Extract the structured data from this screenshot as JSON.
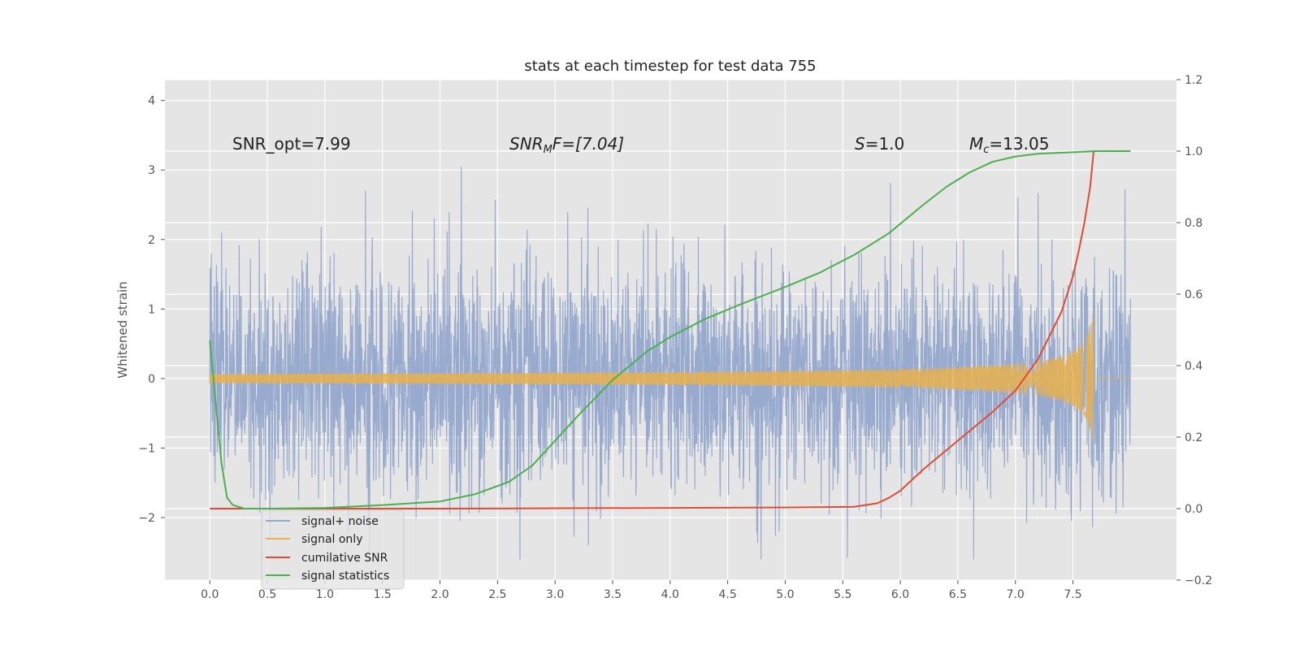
{
  "chart_data": {
    "type": "line",
    "title": "stats at each timestep for test data 755",
    "ylabel": "Whitened strain",
    "xlabel": "",
    "xlim": [
      -0.39,
      8.4
    ],
    "ylim": [
      -2.9,
      4.3
    ],
    "ylim_right": [
      -0.2,
      1.2
    ],
    "x_ticks": [
      "0.0",
      "0.5",
      "1.0",
      "1.5",
      "2.0",
      "2.5",
      "3.0",
      "3.5",
      "4.0",
      "4.5",
      "5.0",
      "5.5",
      "6.0",
      "6.5",
      "7.0",
      "7.5"
    ],
    "y_ticks": [
      "4",
      "3",
      "2",
      "1",
      "0",
      "−1",
      "−2"
    ],
    "y_tick_values": [
      4,
      3,
      2,
      1,
      0,
      -1,
      -2
    ],
    "y2_ticks": [
      "1.2",
      "1.0",
      "0.8",
      "0.6",
      "0.4",
      "0.2",
      "0.0",
      "−0.2"
    ],
    "y2_tick_values": [
      1.2,
      1.0,
      0.8,
      0.6,
      0.4,
      0.2,
      0.0,
      -0.2
    ],
    "grid": true,
    "legend_placement": "lower-left",
    "annotations": {
      "snr_opt": "SNR_opt=7.99",
      "snr_mf_main": "SNR",
      "snr_mf_sub": "M",
      "snr_mf_rest": "F=[7.04]",
      "s_var": "S",
      "s_rest": "=1.0",
      "mc_var": "M",
      "mc_sub": "c",
      "mc_rest": "=13.05"
    },
    "series": [
      {
        "name": "signal+ noise",
        "color": "#94a8cc",
        "axis": "left",
        "description_values": "white noise, std ~0.8, range approx -2.6 to 4.0 over x 0 to 8.0",
        "x_range": [
          0.0,
          8.0
        ],
        "std": 0.8
      },
      {
        "name": "signal only",
        "color": "#e8b04e",
        "axis": "left",
        "chirp_end": 7.68,
        "max_amplitude": 1.05
      },
      {
        "name": "cumilative SNR",
        "color": "#e24a33",
        "axis": "right",
        "x": [
          0.0,
          1.0,
          2.0,
          3.0,
          4.0,
          5.0,
          5.6,
          5.8,
          5.9,
          6.0,
          6.2,
          6.5,
          6.8,
          7.0,
          7.2,
          7.4,
          7.5,
          7.55,
          7.6,
          7.65,
          7.68,
          8.0
        ],
        "y": [
          0.0,
          0.0,
          0.0,
          0.001,
          0.002,
          0.003,
          0.005,
          0.015,
          0.03,
          0.05,
          0.11,
          0.19,
          0.27,
          0.33,
          0.42,
          0.55,
          0.65,
          0.72,
          0.8,
          0.9,
          1.0,
          1.0
        ]
      },
      {
        "name": "signal statistics",
        "color": "#4caf50",
        "axis": "right",
        "x": [
          0.0,
          0.05,
          0.1,
          0.15,
          0.2,
          0.3,
          0.5,
          1.0,
          1.5,
          2.0,
          2.3,
          2.6,
          2.8,
          3.0,
          3.2,
          3.5,
          3.8,
          4.0,
          4.3,
          4.6,
          5.0,
          5.3,
          5.6,
          5.9,
          6.2,
          6.4,
          6.6,
          6.8,
          7.0,
          7.2,
          7.5,
          7.7,
          8.0
        ],
        "y": [
          0.47,
          0.3,
          0.13,
          0.03,
          0.01,
          0.0,
          0.0,
          0.002,
          0.01,
          0.02,
          0.04,
          0.075,
          0.12,
          0.19,
          0.26,
          0.36,
          0.44,
          0.48,
          0.53,
          0.57,
          0.62,
          0.66,
          0.71,
          0.77,
          0.85,
          0.9,
          0.94,
          0.97,
          0.985,
          0.993,
          0.997,
          1.0,
          1.0
        ]
      }
    ]
  }
}
